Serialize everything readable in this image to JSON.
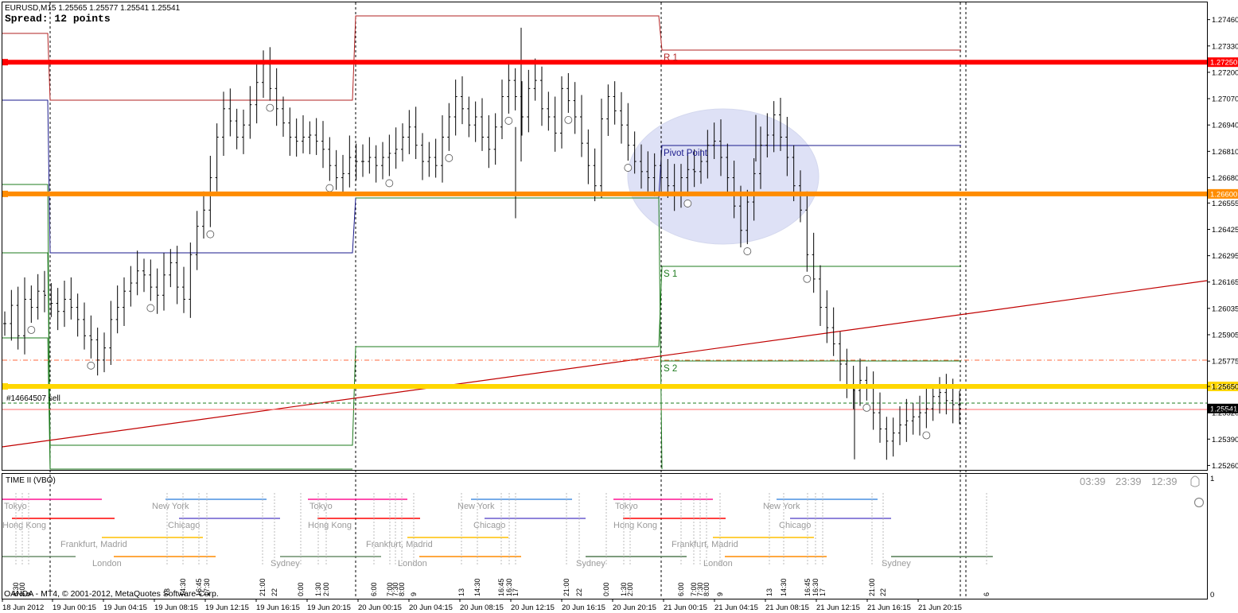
{
  "header": {
    "symbol_line": "EURUSD,M15  1.25565 1.25577 1.25541 1.25541",
    "spread_line": "Spread: 12 points"
  },
  "order_label": "#14664507 sell",
  "level_labels": {
    "r1": "R 1",
    "pivot": "Pivot Point",
    "s1": "S 1",
    "s2": "S 2"
  },
  "price_axis": {
    "ticks": [
      "1.27460",
      "1.27330",
      "1.27200",
      "1.27070",
      "1.26940",
      "1.26810",
      "1.26680",
      "1.26555",
      "1.26425",
      "1.26295",
      "1.26165",
      "1.26035",
      "1.25905",
      "1.25775",
      "1.25650",
      "1.25520",
      "1.25390",
      "1.25260"
    ],
    "tick_values": [
      1.2746,
      1.2733,
      1.272,
      1.2707,
      1.2694,
      1.2681,
      1.2668,
      1.26555,
      1.26425,
      1.26295,
      1.26165,
      1.26035,
      1.25905,
      1.25775,
      1.2565,
      1.2552,
      1.2539,
      1.2526
    ],
    "tags": [
      {
        "text": "1.27250",
        "value": 1.2725,
        "color": "#ff0000"
      },
      {
        "text": "1.26600",
        "value": 1.266,
        "color": "#ff8c00"
      },
      {
        "text": "1.25650",
        "value": 1.2565,
        "color": "#ffd700"
      },
      {
        "text": "1.25541",
        "value": 1.25541,
        "color": "#000000"
      }
    ],
    "range": [
      1.25242,
      1.27545
    ]
  },
  "horizontal_levels": [
    {
      "name": "red-level-line",
      "value": 1.2725,
      "color": "#ff0000"
    },
    {
      "name": "orange-level-line",
      "value": 1.266,
      "color": "#ff8c00"
    },
    {
      "name": "yellow-level-line",
      "value": 1.2565,
      "color": "#ffd700"
    }
  ],
  "date_axis": [
    "18 Jun 2012",
    "19 Jun 00:15",
    "19 Jun 04:15",
    "19 Jun 08:15",
    "19 Jun 12:15",
    "19 Jun 16:15",
    "19 Jun 20:15",
    "20 Jun 00:15",
    "20 Jun 04:15",
    "20 Jun 08:15",
    "20 Jun 12:15",
    "20 Jun 16:15",
    "20 Jun 20:15",
    "21 Jun 00:15",
    "21 Jun 04:15",
    "21 Jun 08:15",
    "21 Jun 12:15",
    "21 Jun 16:15",
    "21 Jun 20:15"
  ],
  "indicator": {
    "title": "TIME II (VBO)",
    "scale_top": "1",
    "scale_bottom": "0",
    "clocks": [
      "03:39",
      "23:39",
      "12:39"
    ],
    "sessions": [
      {
        "label": "Tokyo",
        "color": "#ff1493"
      },
      {
        "label": "New York",
        "color": "#4a90e2"
      },
      {
        "label": "Hong Kong",
        "color": "#ff0000"
      },
      {
        "label": "Chicago",
        "color": "#6a5acd"
      },
      {
        "label": "Frankfurt, Madrid",
        "color": "#ffc000"
      },
      {
        "label": "London",
        "color": "#ff8c00"
      },
      {
        "label": "Sydney",
        "color": "#6b8e6b"
      }
    ],
    "time_labels": [
      "8:30",
      "9:00",
      "9",
      "13",
      "14:30",
      "16:45",
      "17:30",
      "21:00",
      "22",
      "0:00",
      "1:30",
      "2:00",
      "6:00",
      "7:00",
      "7:30",
      "8:00",
      "9",
      "13",
      "14:30",
      "16:45",
      "16:30",
      "17",
      "21:00",
      "22",
      "0:00",
      "1:30",
      "2:00",
      "6:00",
      "7:00",
      "7:30",
      "8:00",
      "9",
      "13",
      "14:30",
      "16:45",
      "16:30",
      "17",
      "21:00",
      "22",
      "6"
    ],
    "copyright": "OANDA - MT4, © 2001-2012, MetaQuotes Software Corp."
  },
  "chart_data": {
    "type": "candlestick",
    "symbol": "EURUSD",
    "timeframe": "M15",
    "ohlc_last": {
      "open": 1.25565,
      "high": 1.25577,
      "low": 1.25541,
      "close": 1.25541
    },
    "ylim": [
      1.25242,
      1.27545
    ],
    "pivot_levels": {
      "R1": 1.2729,
      "Pivot Point": 1.2682,
      "S1": 1.2623,
      "S2": 1.2577
    },
    "horizontal_lines": [
      1.2725,
      1.266,
      1.2565
    ],
    "price_path": [
      [
        1.2596,
        1.2605,
        1.259,
        1.2608,
        1.2604,
        1.2612,
        1.261,
        1.2606,
        1.2602,
        1.2608,
        1.2604,
        1.2598,
        1.259,
        1.2588,
        1.2578,
        1.2584,
        1.2598,
        1.2604,
        1.2612,
        1.2616,
        1.2622,
        1.262,
        1.2614,
        1.261,
        1.262,
        1.2626,
        1.2614,
        1.2608,
        1.263,
        1.2644,
        1.2652,
        1.2668,
        1.2688,
        1.2702,
        1.2696,
        1.2688,
        1.2694,
        1.2704,
        1.2715,
        1.2724,
        1.2712,
        1.2702,
        1.2695,
        1.2688,
        1.2686,
        1.2688,
        1.2689,
        1.2686,
        1.2682,
        1.2674,
        1.2668,
        1.267,
        1.2678,
        1.2676,
        1.2676,
        1.2678,
        1.2674,
        1.2678,
        1.268,
        1.2682,
        1.2688,
        1.2693,
        1.2684,
        1.2676,
        1.2678,
        1.2674,
        1.2688,
        1.2698,
        1.2708,
        1.2702,
        1.2694,
        1.2698,
        1.2688,
        1.2682,
        1.2693,
        1.2708,
        1.2716,
        1.2708,
        1.2698,
        1.2712,
        1.2716,
        1.2702,
        1.2698,
        1.269,
        1.2712,
        1.2706,
        1.2698,
        1.2685,
        1.2674,
        1.2664,
        1.2697,
        1.2708,
        1.2701,
        1.2694,
        1.2684,
        1.2676,
        1.2671,
        1.2668,
        1.2674,
        1.2668,
        1.2664,
        1.266,
        1.2668,
        1.2672,
        1.2671,
        1.2676,
        1.2684,
        1.2686,
        1.2678,
        1.2668,
        1.2654,
        1.2642,
        1.2656,
        1.267,
        1.2684,
        1.2689,
        1.2699,
        1.2688,
        1.2678,
        1.2664,
        1.2652,
        1.263,
        1.2618,
        1.2604,
        1.2594,
        1.2586,
        1.2576,
        1.2566,
        1.2563,
        1.2568,
        1.2564,
        1.2552,
        1.2544,
        1.2538,
        1.2542,
        1.2546,
        1.2548,
        1.255,
        1.2552,
        1.2554,
        1.256,
        1.2562,
        1.2558,
        1.2556,
        1.2554
      ]
    ]
  }
}
